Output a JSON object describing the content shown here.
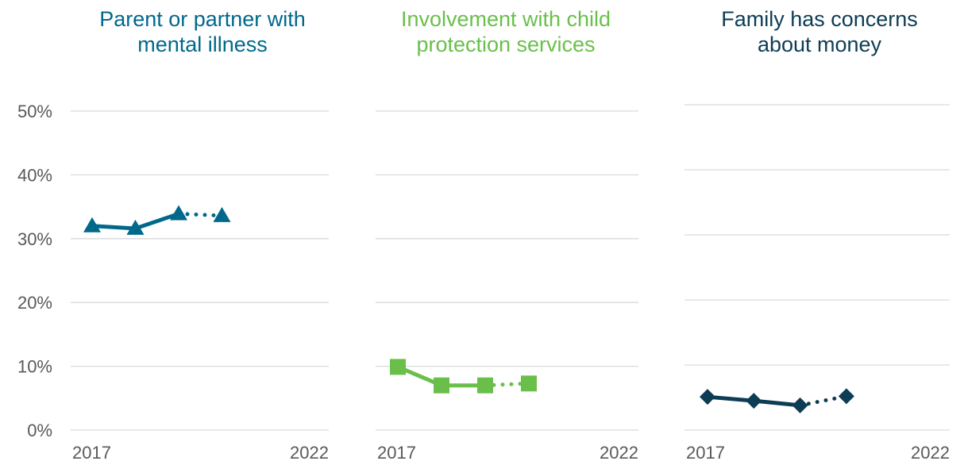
{
  "chart_data": [
    {
      "type": "line",
      "title_lines": [
        "Parent or partner with",
        "mental illness"
      ],
      "color": "#00688b",
      "marker": "triangle",
      "x_tick_labels": [
        "2017",
        "2022"
      ],
      "y_tick_labels": [
        "0%",
        "10%",
        "20%",
        "30%",
        "40%",
        "50%"
      ],
      "ylim": [
        0,
        50
      ],
      "xlim": [
        2017,
        2022
      ],
      "grid": true,
      "x": [
        2017,
        2018,
        2019,
        2020
      ],
      "y": [
        32.0,
        31.6,
        33.9,
        33.6
      ],
      "line_style": [
        "solid",
        "solid",
        "dotted"
      ]
    },
    {
      "type": "line",
      "title_lines": [
        "Involvement with child",
        "protection services"
      ],
      "color": "#6abf4b",
      "marker": "square",
      "x_tick_labels": [
        "2017",
        "2022"
      ],
      "ylim": [
        0,
        50
      ],
      "xlim": [
        2017,
        2022
      ],
      "grid": true,
      "x": [
        2017,
        2018,
        2019,
        2020
      ],
      "y": [
        9.9,
        7.0,
        7.0,
        7.3
      ],
      "line_style": [
        "solid",
        "solid",
        "dotted"
      ]
    },
    {
      "type": "line",
      "title_lines": [
        "Family has concerns",
        "about money"
      ],
      "color": "#0d3c55",
      "marker": "diamond",
      "x_tick_labels": [
        "2017",
        "2022"
      ],
      "ylim": [
        0,
        50
      ],
      "xlim": [
        2017,
        2022
      ],
      "grid": true,
      "x": [
        2017,
        2018,
        2019,
        2020
      ],
      "y": [
        5.1,
        4.5,
        3.8,
        5.2
      ],
      "line_style": [
        "solid",
        "solid",
        "dotted"
      ]
    }
  ],
  "colors": {
    "gridline": "#d9d9d9",
    "axis_text": "#595959"
  }
}
